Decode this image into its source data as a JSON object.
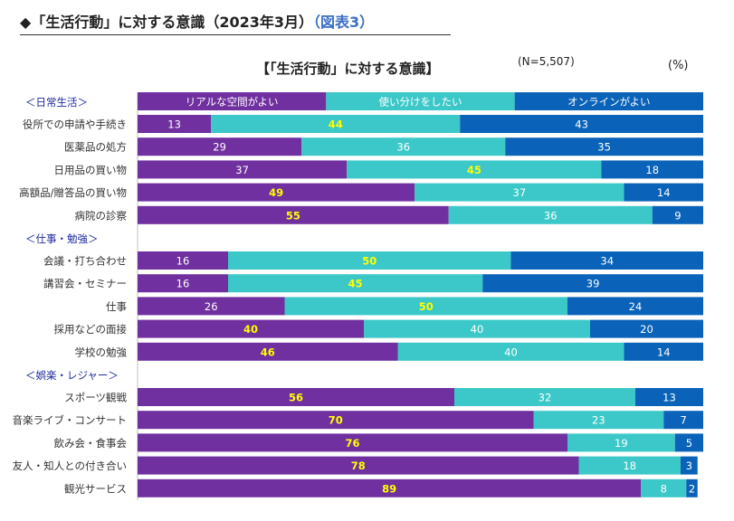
{
  "heading": {
    "marker": "◆",
    "title": "「生活行動」に対する意識（2023年3月）",
    "ref": "（図表3）"
  },
  "chart_title": "【「生活行動」に対する意識】",
  "sample_size": "(N=5,507)",
  "unit": "(%)",
  "colors": {
    "real": "#7030a0",
    "mix": "#3cc8c8",
    "online": "#0a63b8",
    "label_yellow": "#ffff00",
    "label_white": "#ffffff"
  },
  "chart_data": {
    "type": "bar",
    "orientation": "horizontal",
    "stacked": true,
    "xlim": [
      0,
      100
    ],
    "legend": [
      "リアルな空間がよい",
      "使い分けをしたい",
      "オンラインがよい"
    ],
    "groups": [
      {
        "name": "＜日常生活＞",
        "categories": [
          "役所での申請や手続き",
          "医薬品の処方",
          "日用品の買い物",
          "高額品/贈答品の買い物",
          "病院の診察"
        ],
        "series": [
          {
            "name": "リアルな空間がよい",
            "values": [
              13,
              29,
              37,
              49,
              55
            ]
          },
          {
            "name": "使い分けをしたい",
            "values": [
              44,
              36,
              45,
              37,
              36
            ]
          },
          {
            "name": "オンラインがよい",
            "values": [
              43,
              35,
              18,
              14,
              9
            ]
          }
        ]
      },
      {
        "name": "＜仕事・勉強＞",
        "categories": [
          "会議・打ち合わせ",
          "講習会・セミナー",
          "仕事",
          "採用などの面接",
          "学校の勉強"
        ],
        "series": [
          {
            "name": "リアルな空間がよい",
            "values": [
              16,
              16,
              26,
              40,
              46
            ]
          },
          {
            "name": "使い分けをしたい",
            "values": [
              50,
              45,
              50,
              40,
              40
            ]
          },
          {
            "name": "オンラインがよい",
            "values": [
              34,
              39,
              24,
              20,
              14
            ]
          }
        ]
      },
      {
        "name": "＜娯楽・レジャー＞",
        "categories": [
          "スポーツ観戦",
          "音楽ライブ・コンサート",
          "飲み会・食事会",
          "友人・知人との付き合い",
          "観光サービス"
        ],
        "series": [
          {
            "name": "リアルな空間がよい",
            "values": [
              56,
              70,
              76,
              78,
              89
            ]
          },
          {
            "name": "使い分けをしたい",
            "values": [
              32,
              23,
              19,
              18,
              8
            ]
          },
          {
            "name": "オンラインがよい",
            "values": [
              13,
              7,
              5,
              3,
              2
            ]
          }
        ]
      }
    ]
  }
}
